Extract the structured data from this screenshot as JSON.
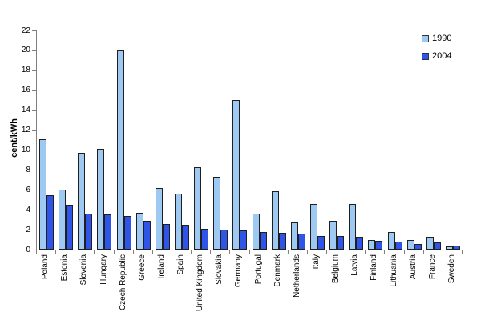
{
  "chart_data": {
    "type": "bar",
    "title": "",
    "xlabel": "",
    "ylabel": "cent/kWh",
    "ylim": [
      0,
      22
    ],
    "y_ticks": [
      0,
      2,
      4,
      6,
      8,
      10,
      12,
      14,
      16,
      18,
      20,
      22
    ],
    "grid": false,
    "legend_position": "top-right-inside",
    "bar_border_color": "#1f1f1f",
    "categories": [
      "Poland",
      "Estonia",
      "Slovenia",
      "Hungary",
      "Czech Republic",
      "Greece",
      "Ireland",
      "Spain",
      "United Kingdom",
      "Slovakia",
      "Germany",
      "Portugal",
      "Denmark",
      "Netherlands",
      "Italy",
      "Belgium",
      "Latvia",
      "Finland",
      "Lithuania",
      "Austria",
      "France",
      "Sweden"
    ],
    "series": [
      {
        "name": "1990",
        "color": "#9dc9f3",
        "values": [
          11.1,
          6.0,
          9.7,
          10.1,
          20.0,
          3.7,
          6.2,
          5.6,
          8.3,
          7.3,
          15.0,
          3.6,
          5.9,
          2.7,
          4.6,
          2.9,
          4.6,
          1.0,
          1.8,
          1.0,
          1.3,
          0.3
        ]
      },
      {
        "name": "2004",
        "color": "#2e55e8",
        "values": [
          5.5,
          4.5,
          3.6,
          3.5,
          3.4,
          2.9,
          2.6,
          2.5,
          2.1,
          2.0,
          1.9,
          1.8,
          1.7,
          1.6,
          1.4,
          1.4,
          1.3,
          0.9,
          0.8,
          0.6,
          0.7,
          0.4
        ]
      }
    ]
  }
}
